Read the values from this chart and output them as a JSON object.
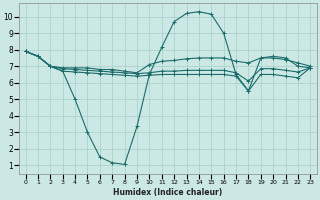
{
  "title": "",
  "xlabel": "Humidex (Indice chaleur)",
  "ylabel": "",
  "bg_color": "#cce8e4",
  "grid_color": "#aad4cc",
  "line_color": "#1a6b6b",
  "xlim": [
    -0.5,
    23.5
  ],
  "ylim": [
    0.5,
    10.8
  ],
  "xticks": [
    0,
    1,
    2,
    3,
    4,
    5,
    6,
    7,
    8,
    9,
    10,
    11,
    12,
    13,
    14,
    15,
    16,
    17,
    18,
    19,
    20,
    21,
    22,
    23
  ],
  "yticks": [
    1,
    2,
    3,
    4,
    5,
    6,
    7,
    8,
    9,
    10
  ],
  "lines": [
    {
      "x": [
        0,
        1,
        2,
        3,
        4,
        5,
        6,
        7,
        8,
        9,
        10,
        11,
        12,
        13,
        14,
        15,
        16,
        17,
        18,
        19,
        20,
        21,
        22,
        23
      ],
      "y": [
        7.9,
        7.6,
        7.0,
        6.7,
        5.0,
        3.0,
        1.5,
        1.15,
        1.05,
        3.35,
        6.5,
        8.15,
        9.7,
        10.2,
        10.3,
        10.15,
        9.0,
        6.5,
        5.5,
        7.5,
        7.6,
        7.5,
        7.0,
        6.9
      ]
    },
    {
      "x": [
        0,
        1,
        2,
        3,
        4,
        5,
        6,
        7,
        8,
        9,
        10,
        11,
        12,
        13,
        14,
        15,
        16,
        17,
        18,
        19,
        20,
        21,
        22,
        23
      ],
      "y": [
        7.9,
        7.6,
        7.0,
        6.9,
        6.9,
        6.9,
        6.8,
        6.8,
        6.7,
        6.6,
        7.1,
        7.3,
        7.35,
        7.45,
        7.5,
        7.5,
        7.5,
        7.3,
        7.2,
        7.5,
        7.5,
        7.4,
        7.2,
        7.0
      ]
    },
    {
      "x": [
        0,
        1,
        2,
        3,
        4,
        5,
        6,
        7,
        8,
        9,
        10,
        11,
        12,
        13,
        14,
        15,
        16,
        17,
        18,
        19,
        20,
        21,
        22,
        23
      ],
      "y": [
        7.9,
        7.6,
        7.0,
        6.7,
        6.65,
        6.6,
        6.55,
        6.5,
        6.45,
        6.4,
        6.45,
        6.5,
        6.5,
        6.5,
        6.5,
        6.5,
        6.5,
        6.4,
        5.5,
        6.5,
        6.5,
        6.4,
        6.3,
        6.9
      ]
    },
    {
      "x": [
        0,
        1,
        2,
        3,
        4,
        5,
        6,
        7,
        8,
        9,
        10,
        11,
        12,
        13,
        14,
        15,
        16,
        17,
        18,
        19,
        20,
        21,
        22,
        23
      ],
      "y": [
        7.9,
        7.6,
        7.0,
        6.85,
        6.8,
        6.75,
        6.7,
        6.65,
        6.6,
        6.55,
        6.6,
        6.7,
        6.7,
        6.75,
        6.75,
        6.75,
        6.75,
        6.6,
        6.1,
        6.85,
        6.85,
        6.75,
        6.65,
        6.9
      ]
    }
  ]
}
